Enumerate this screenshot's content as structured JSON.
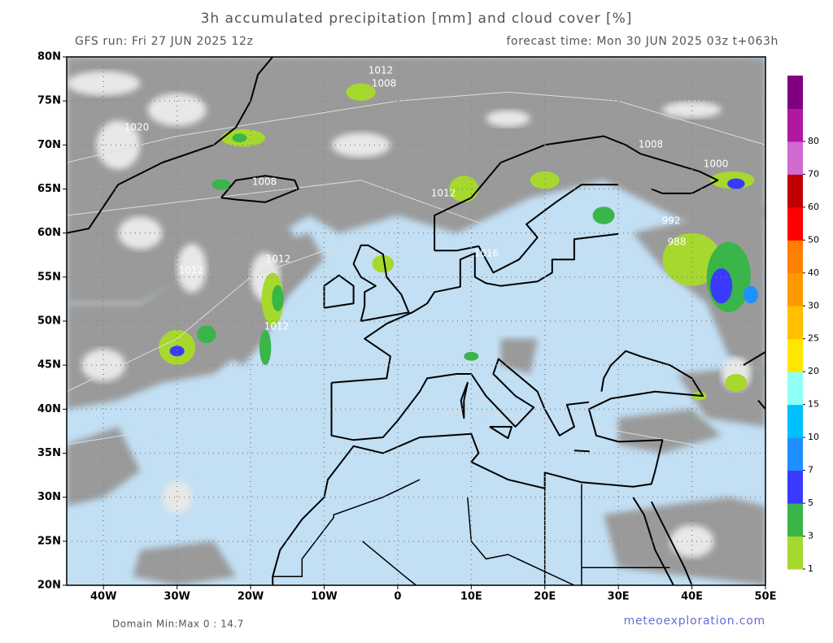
{
  "header": {
    "title": "3h accumulated precipitation [mm] and cloud cover [%]",
    "run": "GFS run: Fri 27 JUN 2025 12z",
    "forecast": "forecast time: Mon 30 JUN 2025 03z  t+063h"
  },
  "map": {
    "lon_range": [
      -45,
      50
    ],
    "lat_range": [
      20,
      80
    ],
    "lat_ticks": [
      {
        "value": 20,
        "label": "20N"
      },
      {
        "value": 25,
        "label": "25N"
      },
      {
        "value": 30,
        "label": "30N"
      },
      {
        "value": 35,
        "label": "35N"
      },
      {
        "value": 40,
        "label": "40N"
      },
      {
        "value": 45,
        "label": "45N"
      },
      {
        "value": 50,
        "label": "50N"
      },
      {
        "value": 55,
        "label": "55N"
      },
      {
        "value": 60,
        "label": "60N"
      },
      {
        "value": 65,
        "label": "65N"
      },
      {
        "value": 70,
        "label": "70N"
      },
      {
        "value": 75,
        "label": "75N"
      },
      {
        "value": 80,
        "label": "80N"
      }
    ],
    "lon_ticks": [
      {
        "value": -40,
        "label": "40W"
      },
      {
        "value": -30,
        "label": "30W"
      },
      {
        "value": -20,
        "label": "20W"
      },
      {
        "value": -10,
        "label": "10W"
      },
      {
        "value": 0,
        "label": "0"
      },
      {
        "value": 10,
        "label": "10E"
      },
      {
        "value": 20,
        "label": "20E"
      },
      {
        "value": 30,
        "label": "30E"
      },
      {
        "value": 40,
        "label": "40E"
      },
      {
        "value": 50,
        "label": "50E"
      }
    ],
    "isobar_labels": [
      "1012",
      "1008",
      "1020",
      "1008",
      "1012",
      "1008",
      "1000",
      "992",
      "988",
      "1012",
      "1012",
      "1012",
      "1016"
    ]
  },
  "colorbar": {
    "levels": [
      1,
      3,
      5,
      7,
      10,
      15,
      20,
      25,
      30,
      40,
      50,
      60,
      70,
      80
    ],
    "colors": [
      "#a6d82e",
      "#39b54a",
      "#3a3aff",
      "#1e90ff",
      "#00c0ff",
      "#8ffff8",
      "#ffe600",
      "#ffc000",
      "#ff9900",
      "#ff7f00",
      "#ff0000",
      "#c00000",
      "#d069d0",
      "#b0189f",
      "#800080"
    ]
  },
  "footer": {
    "domain": "Domain Min:Max 0 : 14.7",
    "site": "meteoexploration.com"
  }
}
